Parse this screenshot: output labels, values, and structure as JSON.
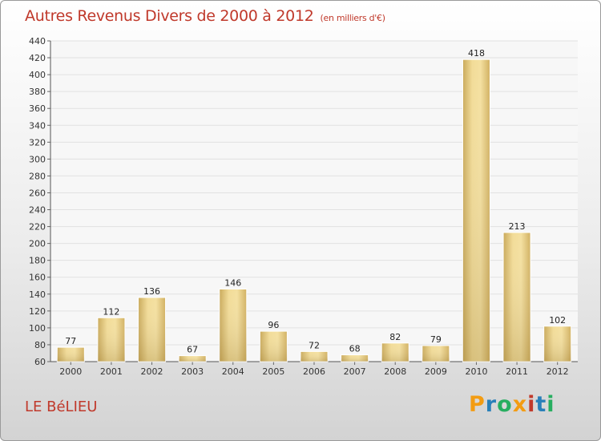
{
  "chart_data": {
    "type": "bar",
    "title": "Autres Revenus Divers de 2000 à 2012",
    "subtitle": "(en milliers d'€)",
    "categories": [
      "2000",
      "2001",
      "2002",
      "2003",
      "2004",
      "2005",
      "2006",
      "2007",
      "2008",
      "2009",
      "2010",
      "2011",
      "2012"
    ],
    "values": [
      77,
      112,
      136,
      67,
      146,
      96,
      72,
      68,
      82,
      79,
      418,
      213,
      102
    ],
    "ylim": [
      60,
      440
    ],
    "yticks": [
      60,
      80,
      100,
      120,
      140,
      160,
      180,
      200,
      220,
      240,
      260,
      280,
      300,
      320,
      340,
      360,
      380,
      400,
      420,
      440
    ],
    "grid": true,
    "bar_color": "#e8cf84"
  },
  "location": "LE BéLIEU",
  "brand": {
    "text": "Proxiti",
    "colors": [
      "#f39c12",
      "#2980b9",
      "#27ae60",
      "#f39c12",
      "#c0392b",
      "#2980b9",
      "#27ae60"
    ]
  }
}
